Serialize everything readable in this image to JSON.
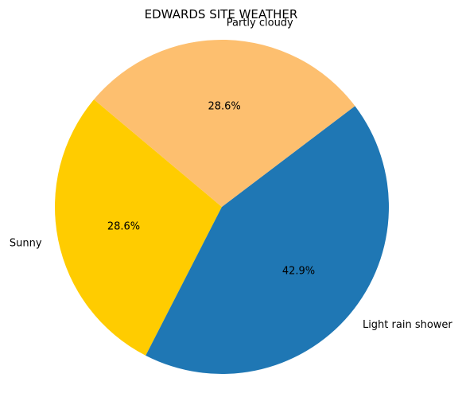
{
  "chart_data": {
    "type": "pie",
    "title": "EDWARDS SITE WEATHER",
    "start_angle_deg": 140,
    "direction": "counterclockwise",
    "slices": [
      {
        "label": "Sunny",
        "value": 28.6,
        "pct_label": "28.6%",
        "color": "#ffcc00"
      },
      {
        "label": "Light rain shower",
        "value": 42.9,
        "pct_label": "42.9%",
        "color": "#1f77b4"
      },
      {
        "label": "Partly cloudy",
        "value": 28.6,
        "pct_label": "28.6%",
        "color": "#fdbf6f"
      }
    ]
  }
}
